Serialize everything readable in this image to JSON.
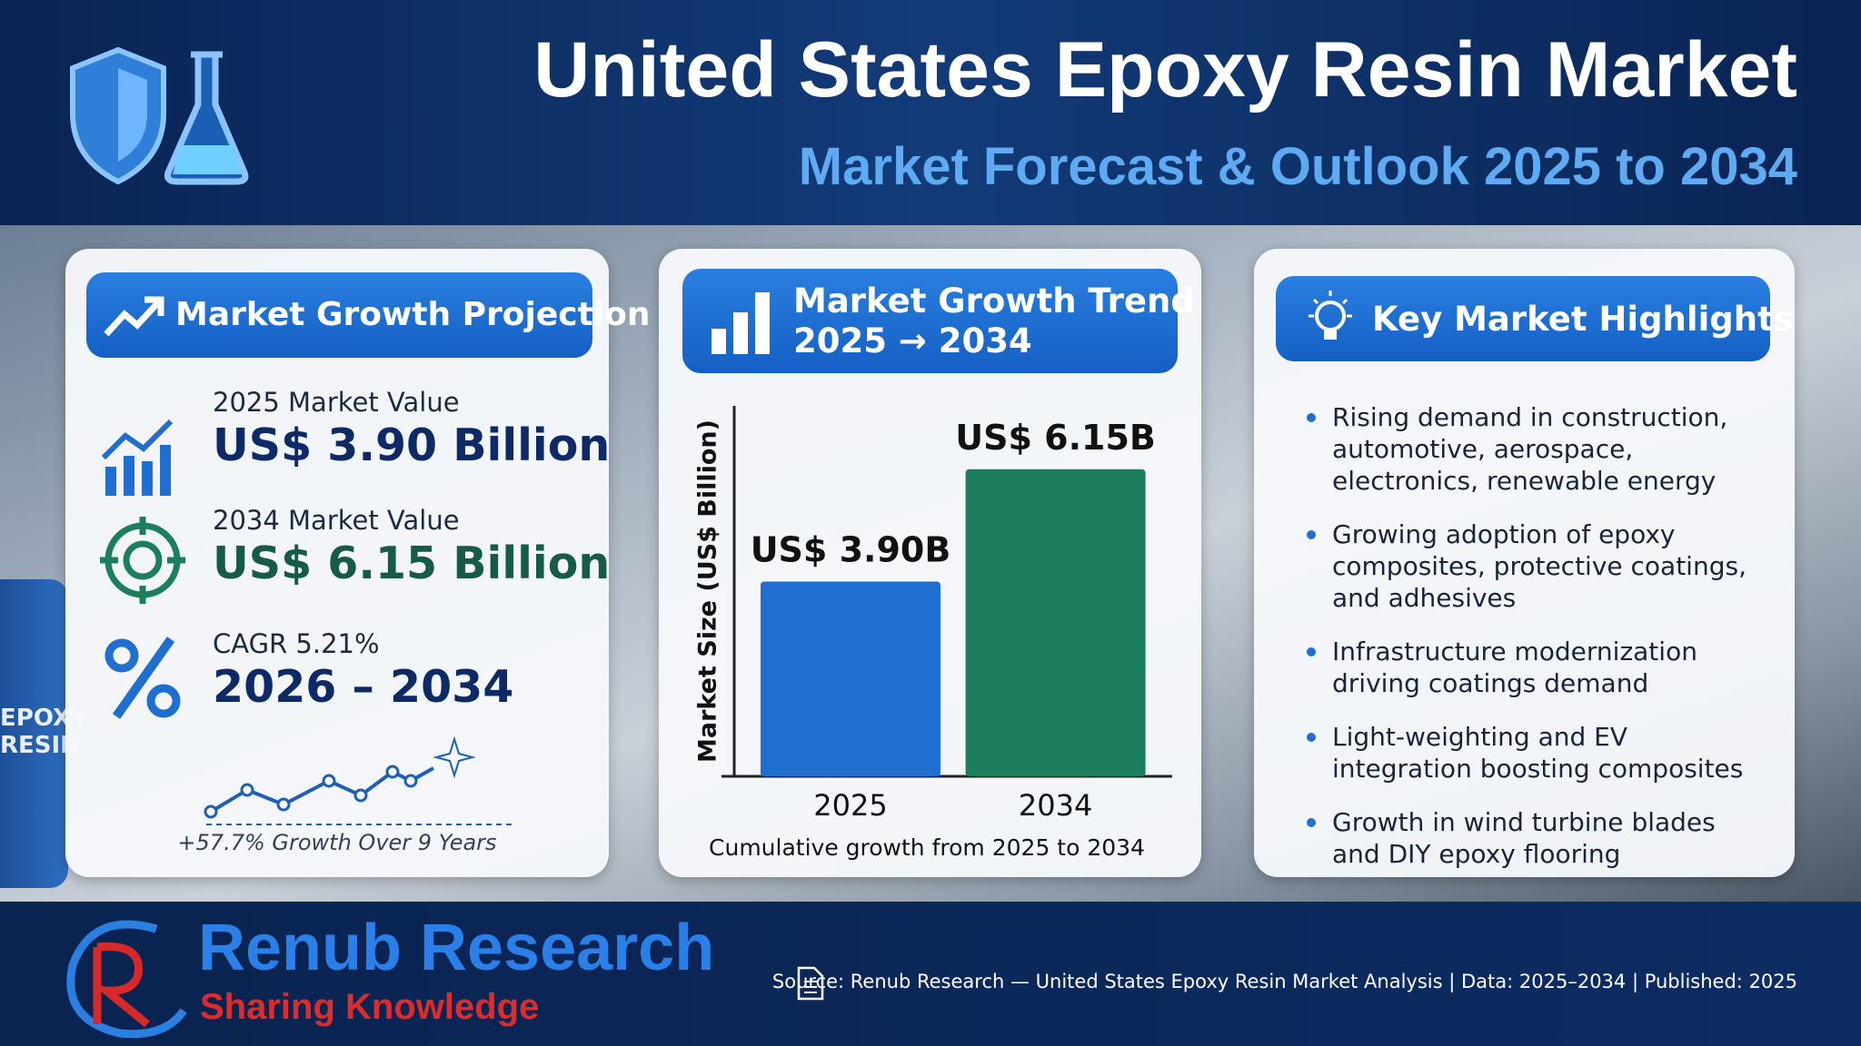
{
  "header": {
    "title": "United States Epoxy Resin Market",
    "subtitle": "Market Forecast & Outlook 2025 to 2034"
  },
  "barrel_label": "EPOXY RESIN",
  "projection": {
    "heading": "Market Growth Projection",
    "items": [
      {
        "label": "2025 Market Value",
        "value": "US$ 3.90 Billion"
      },
      {
        "label": "2034 Market Value",
        "value": "US$ 6.15 Billion"
      },
      {
        "label": "CAGR 5.21%",
        "value": "2026 – 2034"
      }
    ],
    "caption": "+57.7% Growth Over 9 Years"
  },
  "trend": {
    "heading": "Market Growth Trend",
    "range": "2025 → 2034"
  },
  "chart_data": {
    "type": "bar",
    "y_label": "Market Size (US$ Billion)",
    "categories": [
      "2025",
      "2034"
    ],
    "values": [
      3.9,
      6.15
    ],
    "value_labels": [
      "US$ 3.90B",
      "US$ 6.15B"
    ],
    "colors": [
      "#1f6fd0",
      "#1d7e5e"
    ],
    "ylim": [
      0,
      7
    ],
    "caption": "Cumulative growth from 2025 to 2034"
  },
  "highlights": {
    "heading": "Key Market Highlights",
    "items": [
      "Rising demand in construction, automotive, aerospace, electronics, renewable energy",
      "Growing adoption of epoxy composites, protective coatings, and adhesives",
      "Infrastructure modernization driving coatings demand",
      "Light-weighting and EV integration boosting composites",
      "Growth in wind turbine blades and DIY epoxy flooring"
    ]
  },
  "footer": {
    "brand": "Renub Research",
    "tagline": "Sharing Knowledge",
    "source": "Source: Renub Research — United States Epoxy Resin Market Analysis | Data: 2025–2034 | Published: 2025"
  }
}
